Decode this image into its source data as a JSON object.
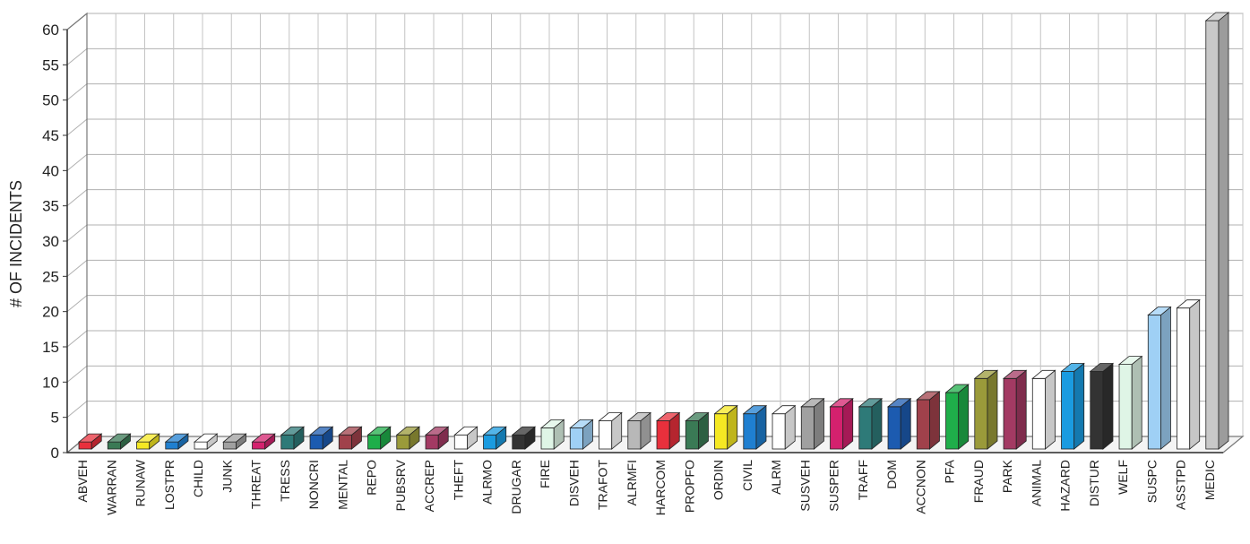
{
  "chart_data": {
    "type": "bar",
    "ylabel": "# OF INCIDENTS",
    "xlabel": "",
    "ylim": [
      0,
      60
    ],
    "yticks": [
      0,
      5,
      10,
      15,
      20,
      25,
      30,
      35,
      40,
      45,
      50,
      55,
      60
    ],
    "grid": true,
    "categories": [
      "ABVEH",
      "WARRAN",
      "RUNAW",
      "LOSTPR",
      "CHILD",
      "JUNK",
      "THREAT",
      "TRESS",
      "NONCRI",
      "MENTAL",
      "REPO",
      "PUBSRV",
      "ACCREP",
      "THEFT",
      "ALRMO",
      "DRUGAR",
      "FIRE",
      "DISVEH",
      "TRAFOT",
      "ALRMFI",
      "HARCOM",
      "PROPFO",
      "ORDIN",
      "CIVIL",
      "ALRM",
      "SUSVEH",
      "SUSPER",
      "TRAFF",
      "DOM",
      "ACCNON",
      "PFA",
      "FRAUD",
      "PARK",
      "ANIMAL",
      "HAZARD",
      "DISTUR",
      "WELF",
      "SUSPC",
      "ASSTPD",
      "MEDIC"
    ],
    "values": [
      1,
      1,
      1,
      1,
      1,
      1,
      1,
      2,
      2,
      2,
      2,
      2,
      2,
      2,
      2,
      2,
      3,
      3,
      4,
      4,
      4,
      4,
      5,
      5,
      5,
      6,
      6,
      6,
      6,
      7,
      8,
      10,
      10,
      10,
      11,
      11,
      12,
      19,
      20,
      61
    ],
    "colors": [
      "#e8303c",
      "#3a7a55",
      "#f5e823",
      "#1f7fd0",
      "#ffffff",
      "#a0a0a0",
      "#d4216e",
      "#2e7a78",
      "#1c5bb0",
      "#a0414b",
      "#1fae4a",
      "#9a9a3a",
      "#a33a63",
      "#ffffff",
      "#1a9be0",
      "#333333",
      "#dff5e6",
      "#9fd0f5",
      "#ffffff",
      "#b8b8b8",
      "#e8303c",
      "#3a7a55",
      "#f5e823",
      "#1f7fd0",
      "#ffffff",
      "#a0a0a0",
      "#d4216e",
      "#2e7a78",
      "#1c5bb0",
      "#a0414b",
      "#1fae4a",
      "#9a9a3a",
      "#a33a63",
      "#ffffff",
      "#1a9be0",
      "#333333",
      "#dff5e6",
      "#9fd0f5",
      "#ffffff",
      "#c8c8c8"
    ]
  }
}
